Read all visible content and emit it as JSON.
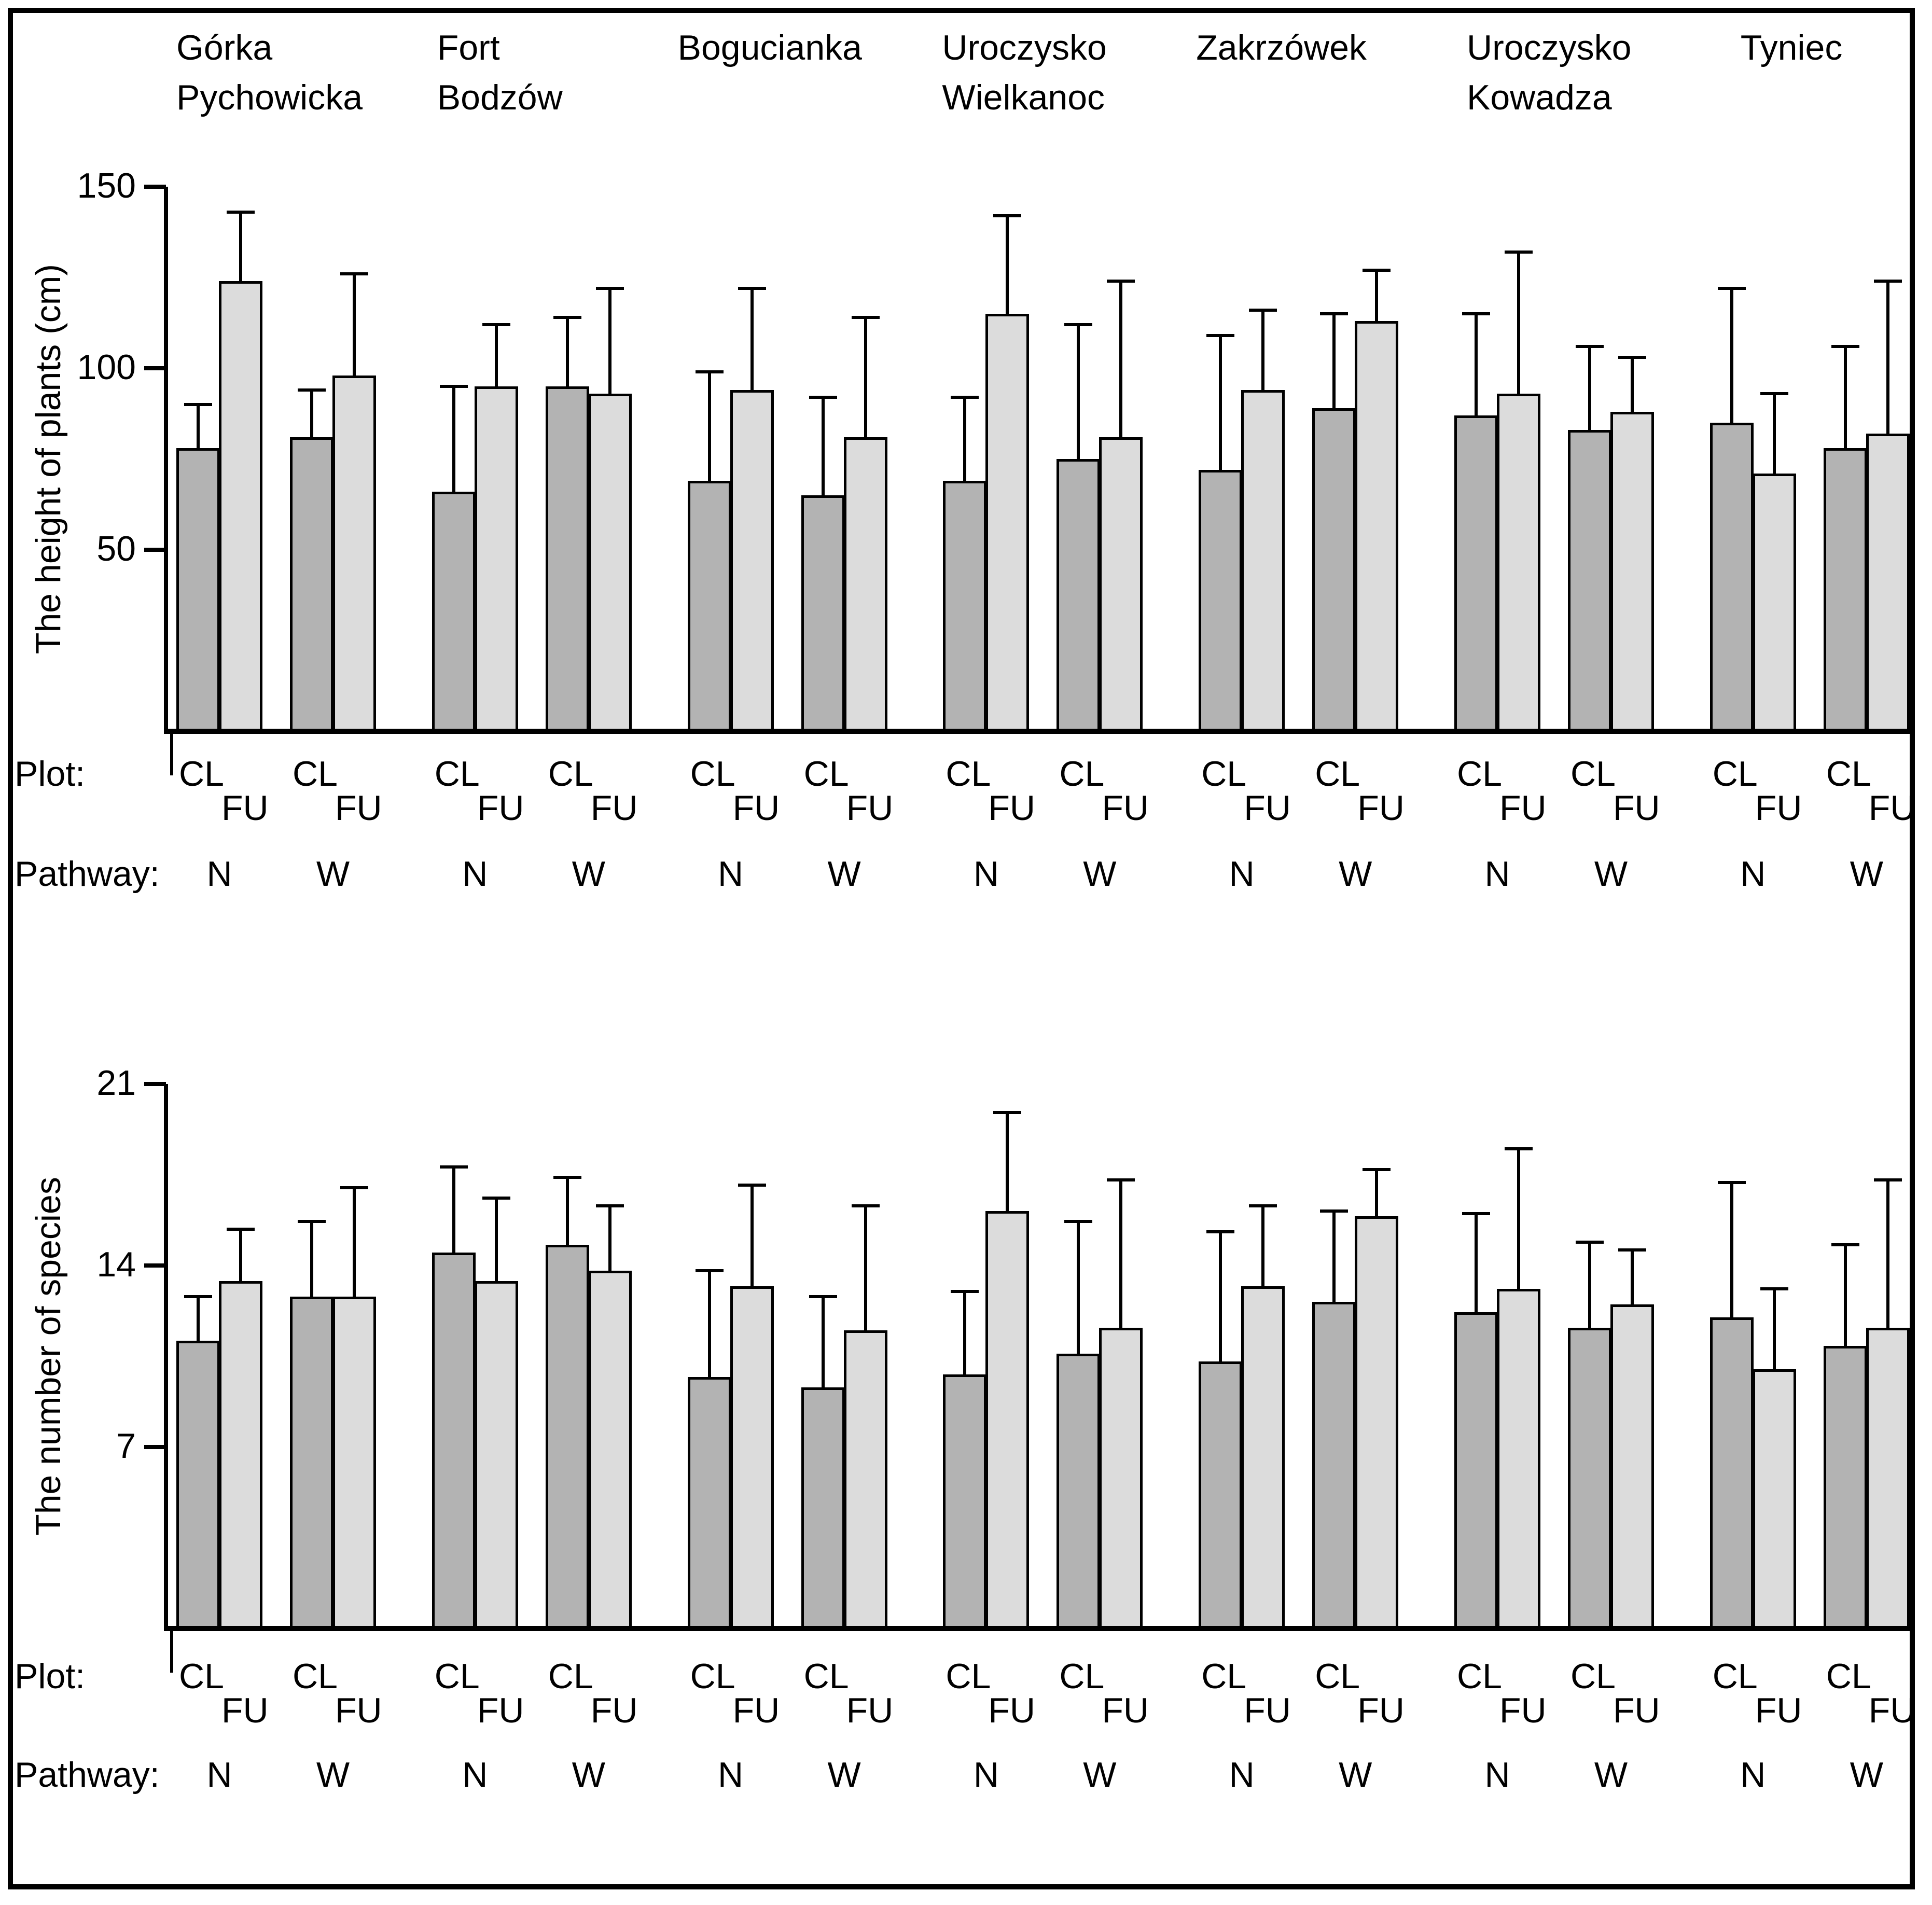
{
  "figure": {
    "plot_row_label": "Plot:",
    "pathway_row_label": "Pathway:",
    "plot_types": [
      "CL",
      "FU"
    ],
    "pathways": [
      "N",
      "W"
    ],
    "site_header_lines": [
      [
        "Górka",
        "Pychowicka"
      ],
      [
        "Fort",
        "Bodzów"
      ],
      [
        "Bogucianka"
      ],
      [
        "Uroczysko",
        "Wielkanoc"
      ],
      [
        "Zakrzówek"
      ],
      [
        "Uroczysko",
        "Kowadza"
      ],
      [
        "Tyniec"
      ]
    ],
    "colors": {
      "cl_fill": "#b3b3b3",
      "fu_fill": "#dcdcdc",
      "line": "#000000",
      "background": "#ffffff"
    }
  },
  "chart_data": [
    {
      "type": "bar",
      "ylabel": "The height of plants (cm)",
      "yticks": [
        150,
        100,
        50
      ],
      "ylim": [
        0,
        150
      ],
      "grid": false,
      "bar_groups_note": "values in cm; error_top = top of upper SD whisker",
      "sites": [
        {
          "site": "Górka Pychowicka",
          "groups": [
            {
              "pathway": "N",
              "bars": [
                {
                  "plot": "CL",
                  "value": 78,
                  "error_top": 90
                },
                {
                  "plot": "FU",
                  "value": 124,
                  "error_top": 143
                }
              ]
            },
            {
              "pathway": "W",
              "bars": [
                {
                  "plot": "CL",
                  "value": 81,
                  "error_top": 94
                },
                {
                  "plot": "FU",
                  "value": 98,
                  "error_top": 126
                }
              ]
            }
          ]
        },
        {
          "site": "Fort Bodzów",
          "groups": [
            {
              "pathway": "N",
              "bars": [
                {
                  "plot": "CL",
                  "value": 66,
                  "error_top": 95
                },
                {
                  "plot": "FU",
                  "value": 95,
                  "error_top": 112
                }
              ]
            },
            {
              "pathway": "W",
              "bars": [
                {
                  "plot": "CL",
                  "value": 95,
                  "error_top": 114
                },
                {
                  "plot": "FU",
                  "value": 93,
                  "error_top": 122
                }
              ]
            }
          ]
        },
        {
          "site": "Bogucianka",
          "groups": [
            {
              "pathway": "N",
              "bars": [
                {
                  "plot": "CL",
                  "value": 69,
                  "error_top": 99
                },
                {
                  "plot": "FU",
                  "value": 94,
                  "error_top": 122
                }
              ]
            },
            {
              "pathway": "W",
              "bars": [
                {
                  "plot": "CL",
                  "value": 65,
                  "error_top": 92
                },
                {
                  "plot": "FU",
                  "value": 81,
                  "error_top": 114
                }
              ]
            }
          ]
        },
        {
          "site": "Uroczysko Wielkanoc",
          "groups": [
            {
              "pathway": "N",
              "bars": [
                {
                  "plot": "CL",
                  "value": 69,
                  "error_top": 92
                },
                {
                  "plot": "FU",
                  "value": 115,
                  "error_top": 142
                }
              ]
            },
            {
              "pathway": "W",
              "bars": [
                {
                  "plot": "CL",
                  "value": 75,
                  "error_top": 112
                },
                {
                  "plot": "FU",
                  "value": 81,
                  "error_top": 124
                }
              ]
            }
          ]
        },
        {
          "site": "Zakrzówek",
          "groups": [
            {
              "pathway": "N",
              "bars": [
                {
                  "plot": "CL",
                  "value": 72,
                  "error_top": 109
                },
                {
                  "plot": "FU",
                  "value": 94,
                  "error_top": 116
                }
              ]
            },
            {
              "pathway": "W",
              "bars": [
                {
                  "plot": "CL",
                  "value": 89,
                  "error_top": 115
                },
                {
                  "plot": "FU",
                  "value": 113,
                  "error_top": 127
                }
              ]
            }
          ]
        },
        {
          "site": "Uroczysko Kowadza",
          "groups": [
            {
              "pathway": "N",
              "bars": [
                {
                  "plot": "CL",
                  "value": 87,
                  "error_top": 115
                },
                {
                  "plot": "FU",
                  "value": 93,
                  "error_top": 132
                }
              ]
            },
            {
              "pathway": "W",
              "bars": [
                {
                  "plot": "CL",
                  "value": 83,
                  "error_top": 106
                },
                {
                  "plot": "FU",
                  "value": 88,
                  "error_top": 103
                }
              ]
            }
          ]
        },
        {
          "site": "Tyniec",
          "groups": [
            {
              "pathway": "N",
              "bars": [
                {
                  "plot": "CL",
                  "value": 85,
                  "error_top": 122
                },
                {
                  "plot": "FU",
                  "value": 71,
                  "error_top": 93
                }
              ]
            },
            {
              "pathway": "W",
              "bars": [
                {
                  "plot": "CL",
                  "value": 78,
                  "error_top": 106
                },
                {
                  "plot": "FU",
                  "value": 82,
                  "error_top": 124
                }
              ]
            }
          ]
        }
      ]
    },
    {
      "type": "bar",
      "ylabel": "The number of species",
      "yticks": [
        21,
        14,
        7
      ],
      "ylim": [
        0,
        21
      ],
      "grid": false,
      "bar_groups_note": "values in species counts; error_top = top of upper SD whisker",
      "sites": [
        {
          "site": "Górka Pychowicka",
          "groups": [
            {
              "pathway": "N",
              "bars": [
                {
                  "plot": "CL",
                  "value": 11.1,
                  "error_top": 12.8
                },
                {
                  "plot": "FU",
                  "value": 13.4,
                  "error_top": 15.4
                }
              ]
            },
            {
              "pathway": "W",
              "bars": [
                {
                  "plot": "CL",
                  "value": 12.8,
                  "error_top": 15.7
                },
                {
                  "plot": "FU",
                  "value": 12.8,
                  "error_top": 17.0
                }
              ]
            }
          ]
        },
        {
          "site": "Fort Bodzów",
          "groups": [
            {
              "pathway": "N",
              "bars": [
                {
                  "plot": "CL",
                  "value": 14.5,
                  "error_top": 17.8
                },
                {
                  "plot": "FU",
                  "value": 13.4,
                  "error_top": 16.6
                }
              ]
            },
            {
              "pathway": "W",
              "bars": [
                {
                  "plot": "CL",
                  "value": 14.8,
                  "error_top": 17.4
                },
                {
                  "plot": "FU",
                  "value": 13.8,
                  "error_top": 16.3
                }
              ]
            }
          ]
        },
        {
          "site": "Bogucianka",
          "groups": [
            {
              "pathway": "N",
              "bars": [
                {
                  "plot": "CL",
                  "value": 9.7,
                  "error_top": 13.8
                },
                {
                  "plot": "FU",
                  "value": 13.2,
                  "error_top": 17.1
                }
              ]
            },
            {
              "pathway": "W",
              "bars": [
                {
                  "plot": "CL",
                  "value": 9.3,
                  "error_top": 12.8
                },
                {
                  "plot": "FU",
                  "value": 11.5,
                  "error_top": 16.3
                }
              ]
            }
          ]
        },
        {
          "site": "Uroczysko Wielkanoc",
          "groups": [
            {
              "pathway": "N",
              "bars": [
                {
                  "plot": "CL",
                  "value": 9.8,
                  "error_top": 13.0
                },
                {
                  "plot": "FU",
                  "value": 16.1,
                  "error_top": 19.9
                }
              ]
            },
            {
              "pathway": "W",
              "bars": [
                {
                  "plot": "CL",
                  "value": 10.6,
                  "error_top": 15.7
                },
                {
                  "plot": "FU",
                  "value": 11.6,
                  "error_top": 17.3
                }
              ]
            }
          ]
        },
        {
          "site": "Zakrzówek",
          "groups": [
            {
              "pathway": "N",
              "bars": [
                {
                  "plot": "CL",
                  "value": 10.3,
                  "error_top": 15.3
                },
                {
                  "plot": "FU",
                  "value": 13.2,
                  "error_top": 16.3
                }
              ]
            },
            {
              "pathway": "W",
              "bars": [
                {
                  "plot": "CL",
                  "value": 12.6,
                  "error_top": 16.1
                },
                {
                  "plot": "FU",
                  "value": 15.9,
                  "error_top": 17.7
                }
              ]
            }
          ]
        },
        {
          "site": "Uroczysko Kowadza",
          "groups": [
            {
              "pathway": "N",
              "bars": [
                {
                  "plot": "CL",
                  "value": 12.2,
                  "error_top": 16.0
                },
                {
                  "plot": "FU",
                  "value": 13.1,
                  "error_top": 18.5
                }
              ]
            },
            {
              "pathway": "W",
              "bars": [
                {
                  "plot": "CL",
                  "value": 11.6,
                  "error_top": 14.9
                },
                {
                  "plot": "FU",
                  "value": 12.5,
                  "error_top": 14.6
                }
              ]
            }
          ]
        },
        {
          "site": "Tyniec",
          "groups": [
            {
              "pathway": "N",
              "bars": [
                {
                  "plot": "CL",
                  "value": 12.0,
                  "error_top": 17.2
                },
                {
                  "plot": "FU",
                  "value": 10.0,
                  "error_top": 13.1
                }
              ]
            },
            {
              "pathway": "W",
              "bars": [
                {
                  "plot": "CL",
                  "value": 10.9,
                  "error_top": 14.8
                },
                {
                  "plot": "FU",
                  "value": 11.6,
                  "error_top": 17.3
                }
              ]
            }
          ]
        }
      ]
    }
  ]
}
